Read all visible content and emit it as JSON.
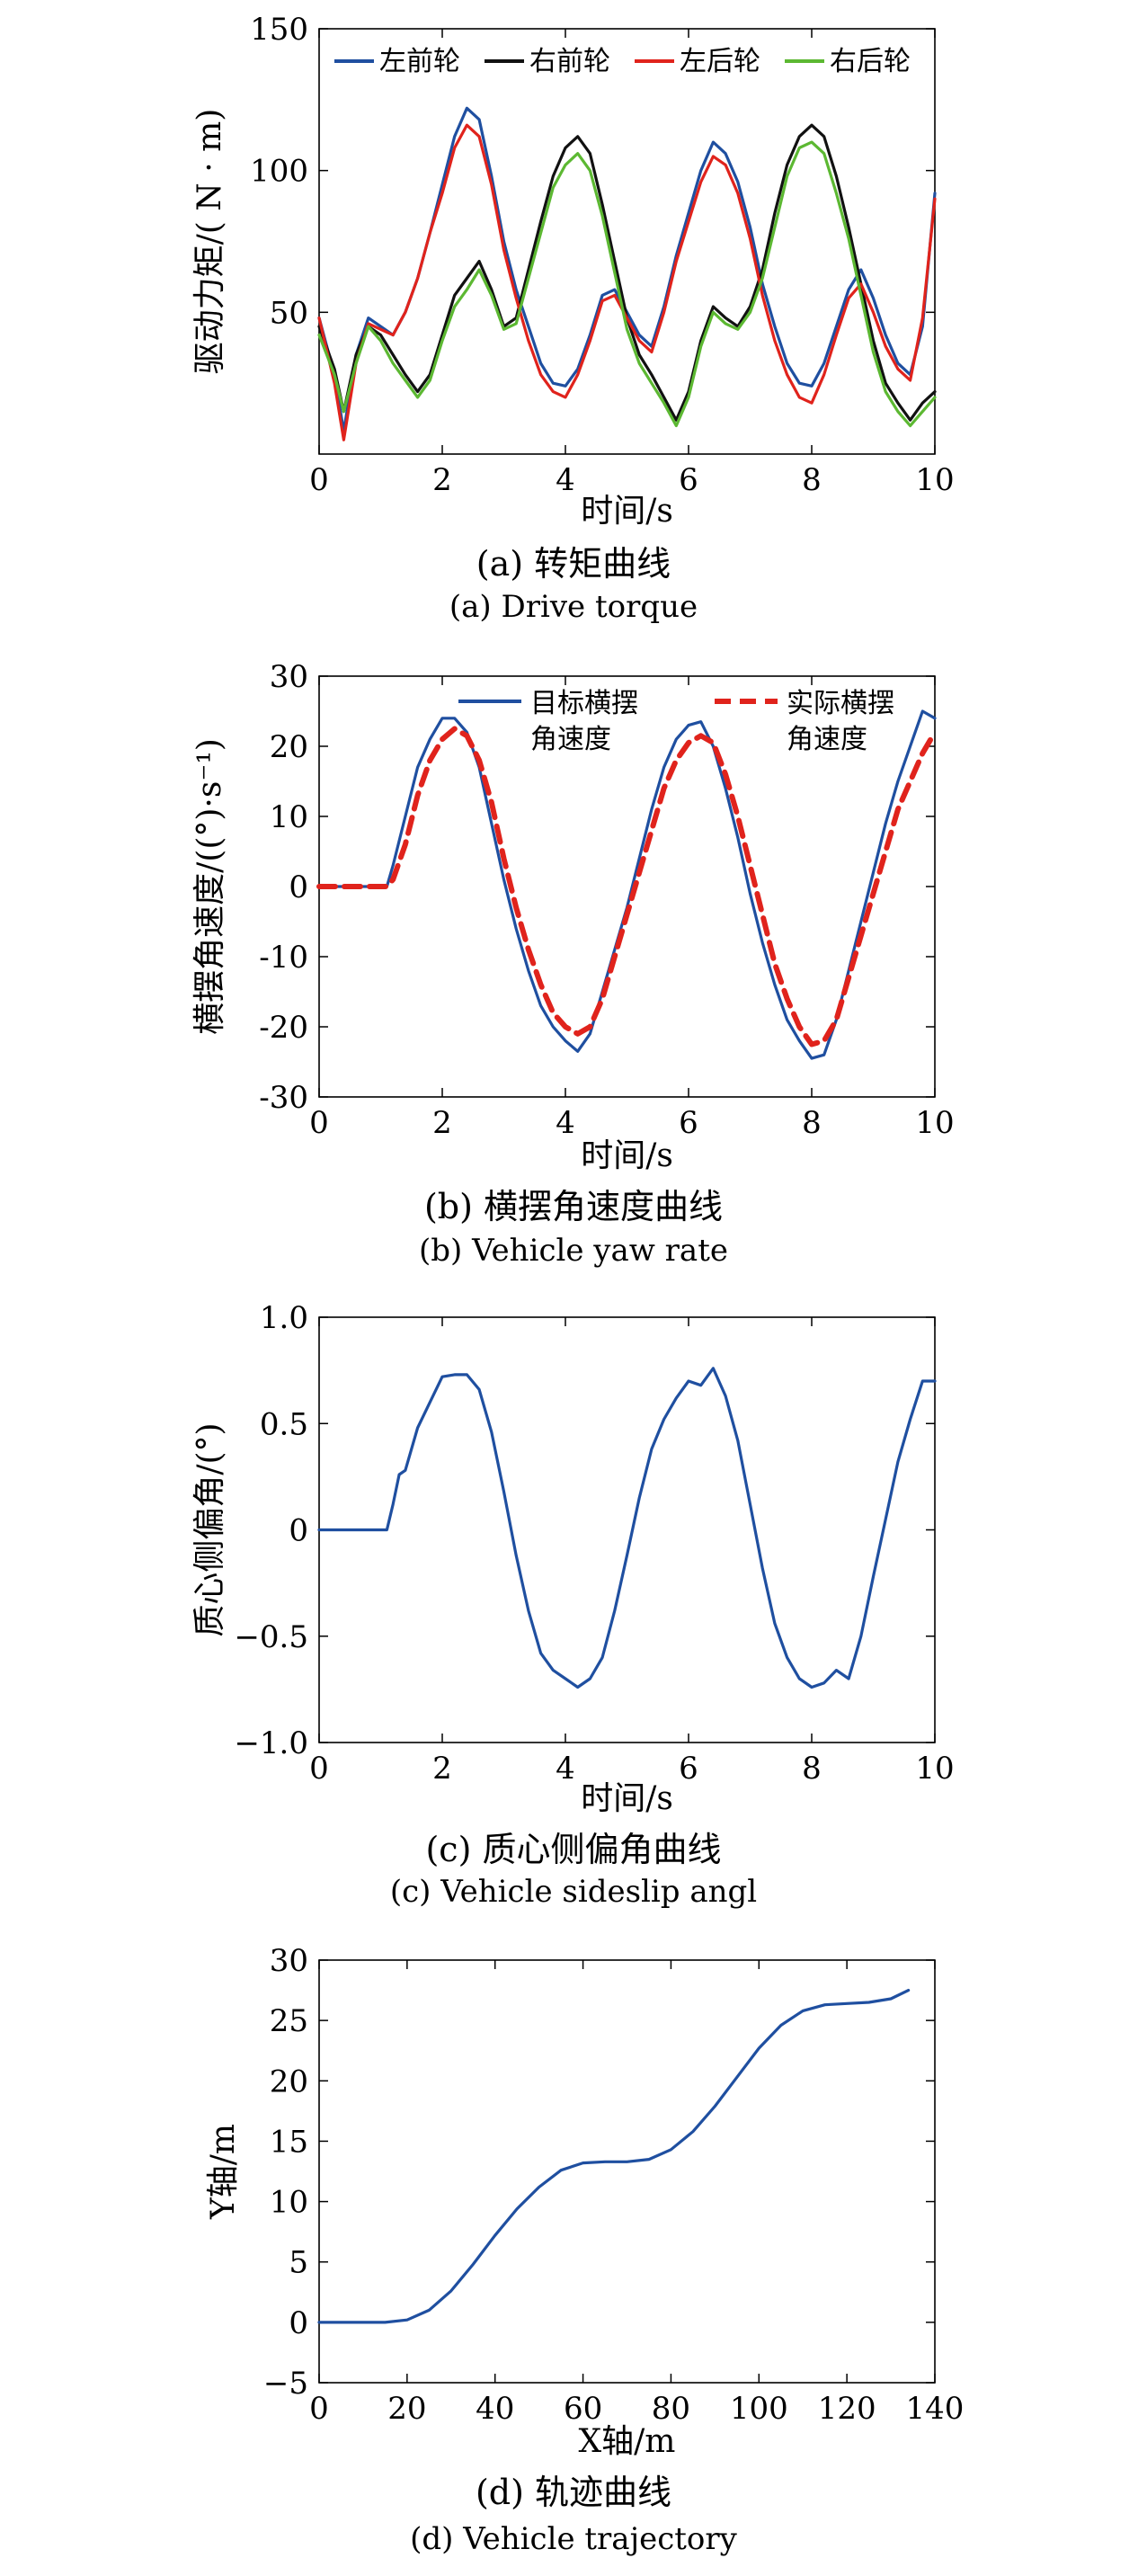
{
  "chart_data": [
    {
      "id": "a",
      "type": "line",
      "ylabel": "驱动力矩/( N · m)",
      "xlabel": "时间/s",
      "caption_cn": "(a) 转矩曲线",
      "caption_en": "(a) Drive torque",
      "xlim": [
        0,
        10
      ],
      "ylim": [
        0,
        150
      ],
      "xticks": [
        0,
        2,
        4,
        6,
        8,
        10
      ],
      "yticks": [
        50,
        100,
        150
      ],
      "grid": false,
      "legend": "top, horizontal",
      "series": [
        {
          "name": "左前轮",
          "color": "#1f4fa0",
          "x": [
            0,
            0.25,
            0.4,
            0.6,
            0.8,
            1.0,
            1.2,
            1.4,
            1.6,
            1.8,
            2.0,
            2.2,
            2.4,
            2.6,
            2.8,
            3.0,
            3.2,
            3.4,
            3.6,
            3.8,
            4.0,
            4.2,
            4.4,
            4.6,
            4.8,
            5.0,
            5.2,
            5.4,
            5.6,
            5.8,
            6.0,
            6.2,
            6.4,
            6.6,
            6.8,
            7.0,
            7.2,
            7.4,
            7.6,
            7.8,
            8.0,
            8.2,
            8.4,
            8.6,
            8.8,
            9.0,
            9.2,
            9.4,
            9.6,
            9.8,
            10.0
          ],
          "y": [
            48,
            28,
            8,
            35,
            48,
            45,
            42,
            50,
            62,
            78,
            95,
            112,
            122,
            118,
            98,
            75,
            58,
            45,
            32,
            25,
            24,
            30,
            42,
            56,
            58,
            50,
            42,
            38,
            52,
            70,
            85,
            100,
            110,
            106,
            96,
            80,
            60,
            45,
            32,
            25,
            24,
            32,
            45,
            58,
            65,
            55,
            42,
            32,
            28,
            45,
            92
          ]
        },
        {
          "name": "右前轮",
          "color": "#111111",
          "x": [
            0,
            0.25,
            0.4,
            0.6,
            0.8,
            1.0,
            1.2,
            1.4,
            1.6,
            1.8,
            2.0,
            2.2,
            2.4,
            2.6,
            2.8,
            3.0,
            3.2,
            3.4,
            3.6,
            3.8,
            4.0,
            4.2,
            4.4,
            4.6,
            4.8,
            5.0,
            5.2,
            5.4,
            5.6,
            5.8,
            6.0,
            6.2,
            6.4,
            6.6,
            6.8,
            7.0,
            7.2,
            7.4,
            7.6,
            7.8,
            8.0,
            8.2,
            8.4,
            8.6,
            8.8,
            9.0,
            9.2,
            9.4,
            9.6,
            9.8,
            10.0
          ],
          "y": [
            45,
            30,
            15,
            35,
            45,
            42,
            35,
            28,
            22,
            28,
            42,
            56,
            62,
            68,
            58,
            45,
            48,
            65,
            82,
            98,
            108,
            112,
            106,
            88,
            68,
            48,
            35,
            28,
            20,
            12,
            22,
            40,
            52,
            48,
            45,
            52,
            65,
            85,
            102,
            112,
            116,
            112,
            98,
            80,
            60,
            40,
            25,
            18,
            12,
            18,
            22
          ]
        },
        {
          "name": "左后轮",
          "color": "#e0231c",
          "x": [
            0,
            0.25,
            0.4,
            0.6,
            0.8,
            1.0,
            1.2,
            1.4,
            1.6,
            1.8,
            2.0,
            2.2,
            2.4,
            2.6,
            2.8,
            3.0,
            3.2,
            3.4,
            3.6,
            3.8,
            4.0,
            4.2,
            4.4,
            4.6,
            4.8,
            5.0,
            5.2,
            5.4,
            5.6,
            5.8,
            6.0,
            6.2,
            6.4,
            6.6,
            6.8,
            7.0,
            7.2,
            7.4,
            7.6,
            7.8,
            8.0,
            8.2,
            8.4,
            8.6,
            8.8,
            9.0,
            9.2,
            9.4,
            9.6,
            9.8,
            10.0
          ],
          "y": [
            48,
            25,
            5,
            32,
            46,
            44,
            42,
            50,
            62,
            78,
            92,
            108,
            116,
            112,
            95,
            72,
            55,
            40,
            28,
            22,
            20,
            28,
            40,
            54,
            56,
            48,
            40,
            36,
            50,
            68,
            82,
            96,
            105,
            102,
            92,
            76,
            56,
            40,
            28,
            20,
            18,
            28,
            42,
            55,
            60,
            50,
            38,
            30,
            26,
            48,
            90
          ]
        },
        {
          "name": "右后轮",
          "color": "#5cb832",
          "x": [
            0,
            0.25,
            0.4,
            0.6,
            0.8,
            1.0,
            1.2,
            1.4,
            1.6,
            1.8,
            2.0,
            2.2,
            2.4,
            2.6,
            2.8,
            3.0,
            3.2,
            3.4,
            3.6,
            3.8,
            4.0,
            4.2,
            4.4,
            4.6,
            4.8,
            5.0,
            5.2,
            5.4,
            5.6,
            5.8,
            6.0,
            6.2,
            6.4,
            6.6,
            6.8,
            7.0,
            7.2,
            7.4,
            7.6,
            7.8,
            8.0,
            8.2,
            8.4,
            8.6,
            8.8,
            9.0,
            9.2,
            9.4,
            9.6,
            9.8,
            10.0
          ],
          "y": [
            42,
            28,
            15,
            32,
            45,
            40,
            32,
            26,
            20,
            26,
            40,
            52,
            58,
            65,
            56,
            44,
            46,
            62,
            78,
            94,
            102,
            106,
            100,
            84,
            64,
            44,
            32,
            25,
            18,
            10,
            20,
            38,
            50,
            46,
            44,
            50,
            62,
            80,
            98,
            108,
            110,
            106,
            92,
            76,
            56,
            36,
            22,
            15,
            10,
            15,
            20
          ]
        }
      ]
    },
    {
      "id": "b",
      "type": "line",
      "ylabel": "横摆角速度/((°)·s⁻¹)",
      "xlabel": "时间/s",
      "caption_cn": "(b) 横摆角速度曲线",
      "caption_en": "(b) Vehicle yaw rate",
      "xlim": [
        0,
        10
      ],
      "ylim": [
        -30,
        30
      ],
      "xticks": [
        0,
        2,
        4,
        6,
        8,
        10
      ],
      "yticks": [
        -30,
        -20,
        -10,
        0,
        10,
        20,
        30
      ],
      "grid": false,
      "legend": "top-right",
      "series": [
        {
          "name": "目标横摆角速度",
          "color": "#1f4fa0",
          "dash": false,
          "x": [
            0,
            1.1,
            1.2,
            1.4,
            1.6,
            1.8,
            2.0,
            2.2,
            2.4,
            2.6,
            2.8,
            3.0,
            3.2,
            3.4,
            3.6,
            3.8,
            4.0,
            4.2,
            4.4,
            4.6,
            4.8,
            5.0,
            5.2,
            5.4,
            5.6,
            5.8,
            6.0,
            6.2,
            6.4,
            6.6,
            6.8,
            7.0,
            7.2,
            7.4,
            7.6,
            7.8,
            8.0,
            8.2,
            8.4,
            8.6,
            8.8,
            9.0,
            9.2,
            9.4,
            9.6,
            9.8,
            10.0
          ],
          "y": [
            0,
            0,
            3,
            10,
            17,
            21,
            24,
            24,
            22,
            17,
            9,
            1,
            -6,
            -12,
            -17,
            -20,
            -22,
            -23.5,
            -21,
            -15,
            -9,
            -3,
            4,
            11,
            17,
            21,
            23,
            23.5,
            20,
            14,
            7,
            -1,
            -8,
            -14,
            -19,
            -22,
            -24.5,
            -24,
            -19,
            -12,
            -5,
            2,
            9,
            15,
            20,
            25,
            24
          ]
        },
        {
          "name": "实际横摆角速度",
          "color": "#e0231c",
          "dash": true,
          "x": [
            0,
            1.1,
            1.2,
            1.4,
            1.6,
            1.8,
            2.0,
            2.2,
            2.4,
            2.6,
            2.8,
            3.0,
            3.2,
            3.4,
            3.6,
            3.8,
            4.0,
            4.2,
            4.4,
            4.6,
            4.8,
            5.0,
            5.2,
            5.4,
            5.6,
            5.8,
            6.0,
            6.2,
            6.4,
            6.6,
            6.8,
            7.0,
            7.2,
            7.4,
            7.6,
            7.8,
            8.0,
            8.2,
            8.4,
            8.6,
            8.8,
            9.0,
            9.2,
            9.4,
            9.6,
            9.8,
            10.0
          ],
          "y": [
            0,
            0,
            1,
            6,
            13,
            18,
            21,
            22.5,
            21.5,
            18,
            12,
            4,
            -3,
            -9,
            -14,
            -18,
            -20,
            -21,
            -20,
            -16,
            -10,
            -4,
            2,
            8,
            14,
            18,
            20.5,
            21.5,
            20.5,
            16,
            10,
            3,
            -4,
            -11,
            -16,
            -20,
            -22.5,
            -22,
            -19,
            -13,
            -7,
            -1,
            5,
            11,
            15,
            19,
            22
          ]
        }
      ]
    },
    {
      "id": "c",
      "type": "line",
      "ylabel": "质心侧偏角/(°)",
      "xlabel": "时间/s",
      "caption_cn": "(c) 质心侧偏角曲线",
      "caption_en": "(c) Vehicle sideslip angl",
      "xlim": [
        0,
        10
      ],
      "ylim": [
        -1.0,
        1.0
      ],
      "xticks": [
        0,
        2,
        4,
        6,
        8,
        10
      ],
      "yticks": [
        -1.0,
        -0.5,
        0,
        0.5,
        1.0
      ],
      "ytick_labels": [
        "−1.0",
        "−0.5",
        "0",
        "0.5",
        "1.0"
      ],
      "grid": false,
      "series": [
        {
          "name": "",
          "color": "#1f4fa0",
          "x": [
            0,
            1.1,
            1.2,
            1.3,
            1.4,
            1.6,
            1.8,
            2.0,
            2.2,
            2.4,
            2.6,
            2.8,
            3.0,
            3.2,
            3.4,
            3.6,
            3.8,
            4.0,
            4.2,
            4.4,
            4.6,
            4.8,
            5.0,
            5.2,
            5.4,
            5.6,
            5.8,
            6.0,
            6.2,
            6.4,
            6.6,
            6.8,
            7.0,
            7.2,
            7.4,
            7.6,
            7.8,
            8.0,
            8.2,
            8.4,
            8.6,
            8.8,
            9.0,
            9.2,
            9.4,
            9.6,
            9.8,
            10.0
          ],
          "y": [
            0,
            0,
            0.12,
            0.26,
            0.28,
            0.48,
            0.6,
            0.72,
            0.73,
            0.73,
            0.66,
            0.46,
            0.18,
            -0.12,
            -0.38,
            -0.58,
            -0.66,
            -0.7,
            -0.74,
            -0.7,
            -0.6,
            -0.38,
            -0.12,
            0.15,
            0.38,
            0.52,
            0.62,
            0.7,
            0.68,
            0.76,
            0.63,
            0.42,
            0.12,
            -0.18,
            -0.44,
            -0.6,
            -0.7,
            -0.74,
            -0.72,
            -0.66,
            -0.7,
            -0.5,
            -0.22,
            0.05,
            0.32,
            0.52,
            0.7,
            0.7
          ]
        }
      ]
    },
    {
      "id": "d",
      "type": "line",
      "ylabel": "Y轴/m",
      "xlabel": "X轴/m",
      "caption_cn": "(d) 轨迹曲线",
      "caption_en": "(d) Vehicle trajectory",
      "xlim": [
        0,
        140
      ],
      "ylim": [
        -5,
        30
      ],
      "xticks": [
        0,
        20,
        40,
        60,
        80,
        100,
        120,
        140
      ],
      "yticks": [
        -5,
        0,
        5,
        10,
        15,
        20,
        25,
        30
      ],
      "ytick_labels": [
        "−5",
        "0",
        "5",
        "10",
        "15",
        "20",
        "25",
        "30"
      ],
      "grid": false,
      "series": [
        {
          "name": "",
          "color": "#1f4fa0",
          "x": [
            0,
            15,
            20,
            25,
            30,
            35,
            40,
            45,
            50,
            55,
            60,
            65,
            70,
            75,
            80,
            85,
            90,
            95,
            100,
            105,
            110,
            115,
            120,
            125,
            130,
            134
          ],
          "y": [
            0,
            0,
            0.2,
            1,
            2.6,
            4.8,
            7.2,
            9.4,
            11.2,
            12.6,
            13.2,
            13.3,
            13.3,
            13.5,
            14.3,
            15.8,
            17.9,
            20.3,
            22.7,
            24.6,
            25.8,
            26.3,
            26.4,
            26.5,
            26.8,
            27.5
          ]
        }
      ]
    }
  ]
}
